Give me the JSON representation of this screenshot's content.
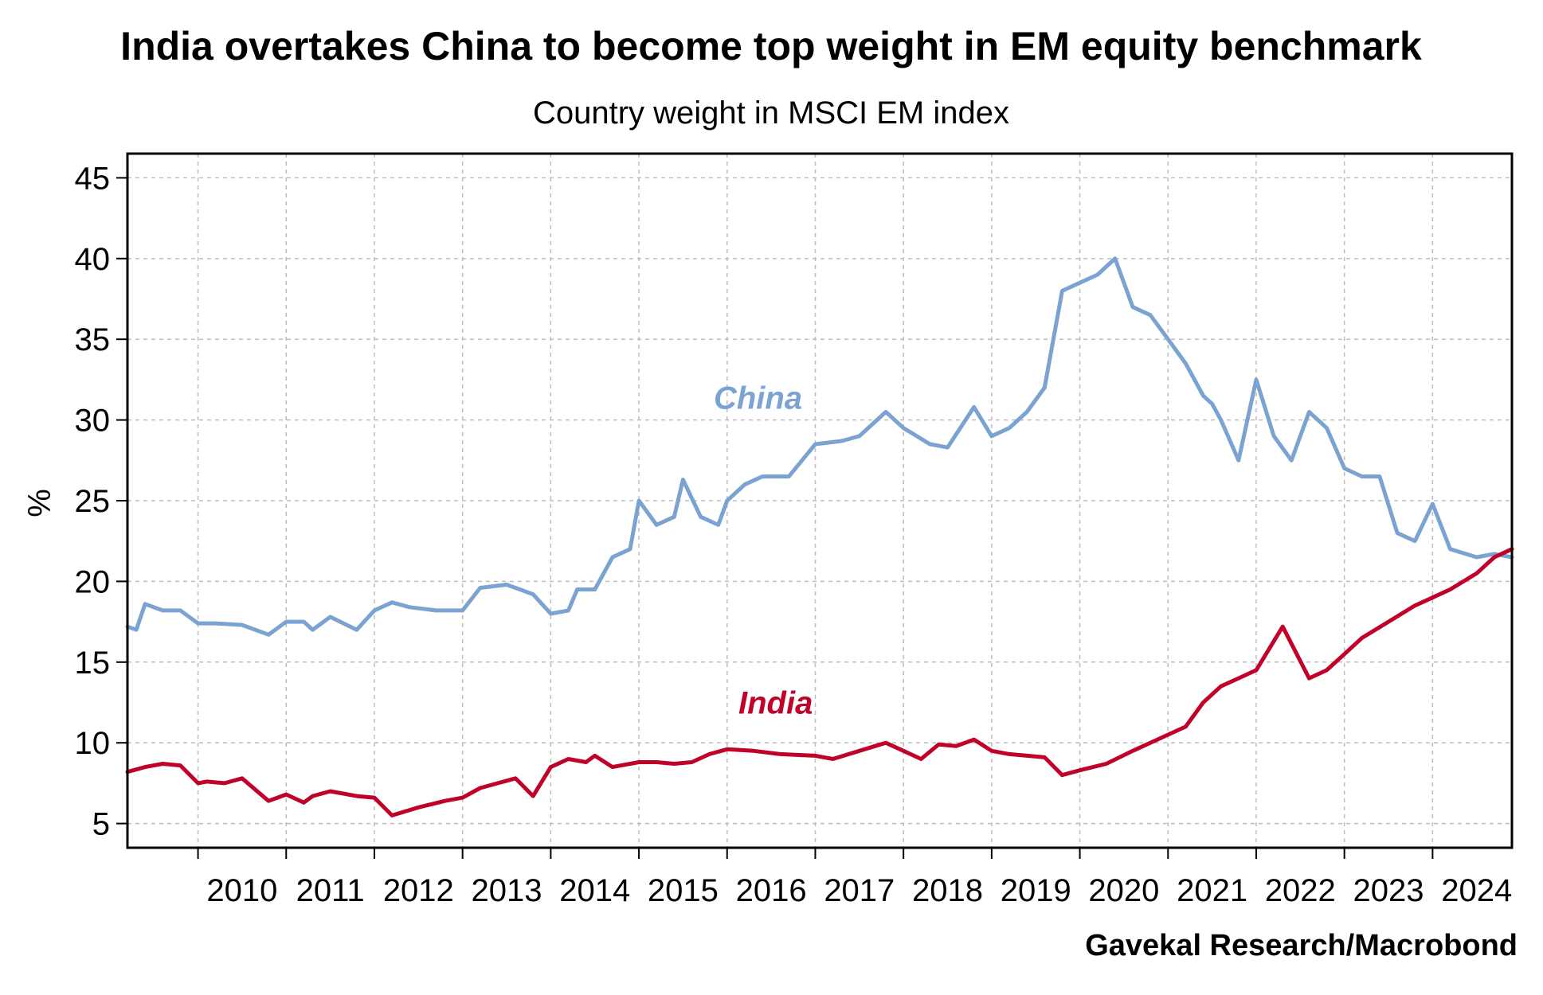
{
  "chart_data": {
    "type": "line",
    "title": "India overtakes China to become top weight in EM equity benchmark",
    "subtitle": "Country weight in MSCI EM index",
    "ylabel": "%",
    "xlabel": "",
    "ylim": [
      3.5,
      46.5
    ],
    "xlim": [
      2009.2,
      2024.9
    ],
    "yticks": [
      5,
      10,
      15,
      20,
      25,
      30,
      35,
      40,
      45
    ],
    "xticks": [
      2010,
      2011,
      2012,
      2013,
      2014,
      2015,
      2016,
      2017,
      2018,
      2019,
      2020,
      2021,
      2022,
      2023,
      2024
    ],
    "xtick_labels": [
      "2010",
      "2011",
      "2012",
      "2013",
      "2014",
      "2015",
      "2016",
      "2017",
      "2018",
      "2019",
      "2020",
      "2021",
      "2022",
      "2023",
      "2024"
    ],
    "grid": true,
    "source": "Gavekal Research/Macrobond",
    "series": [
      {
        "name": "China",
        "color": "#7ba3d1",
        "x": [
          2009.2,
          2009.3,
          2009.4,
          2009.6,
          2009.8,
          2010.0,
          2010.2,
          2010.5,
          2010.8,
          2011.0,
          2011.2,
          2011.3,
          2011.5,
          2011.8,
          2012.0,
          2012.2,
          2012.4,
          2012.7,
          2013.0,
          2013.2,
          2013.5,
          2013.6,
          2013.8,
          2014.0,
          2014.2,
          2014.3,
          2014.5,
          2014.7,
          2014.9,
          2015.0,
          2015.2,
          2015.4,
          2015.5,
          2015.7,
          2015.9,
          2016.0,
          2016.2,
          2016.4,
          2016.7,
          2017.0,
          2017.3,
          2017.5,
          2017.8,
          2018.0,
          2018.3,
          2018.5,
          2018.8,
          2019.0,
          2019.2,
          2019.4,
          2019.6,
          2019.8,
          2020.0,
          2020.2,
          2020.4,
          2020.6,
          2020.8,
          2021.0,
          2021.2,
          2021.4,
          2021.5,
          2021.6,
          2021.8,
          2022.0,
          2022.2,
          2022.4,
          2022.6,
          2022.8,
          2023.0,
          2023.2,
          2023.4,
          2023.6,
          2023.8,
          2024.0,
          2024.2,
          2024.5,
          2024.7,
          2024.9
        ],
        "values": [
          17.2,
          17.0,
          18.6,
          18.2,
          18.2,
          17.4,
          17.4,
          17.3,
          16.7,
          17.5,
          17.5,
          17.0,
          17.8,
          17.0,
          18.2,
          18.7,
          18.4,
          18.2,
          18.2,
          19.6,
          19.8,
          19.6,
          19.2,
          18.0,
          18.2,
          19.5,
          19.5,
          21.5,
          22.0,
          25.0,
          23.5,
          24.0,
          26.3,
          24.0,
          23.5,
          25.0,
          26.0,
          26.5,
          26.5,
          28.5,
          28.7,
          29.0,
          30.5,
          29.5,
          28.5,
          28.3,
          30.8,
          29.0,
          29.5,
          30.5,
          32.0,
          38.0,
          38.5,
          39.0,
          40.0,
          37.0,
          36.5,
          35.0,
          33.5,
          31.5,
          31.0,
          30.0,
          27.5,
          32.5,
          29.0,
          27.5,
          30.5,
          29.5,
          27.0,
          26.5,
          26.5,
          23.0,
          22.5,
          24.8,
          22.0,
          21.5,
          21.7,
          21.5
        ]
      },
      {
        "name": "India",
        "color": "#c0022b",
        "x": [
          2009.2,
          2009.4,
          2009.6,
          2009.8,
          2010.0,
          2010.1,
          2010.3,
          2010.5,
          2010.8,
          2011.0,
          2011.2,
          2011.3,
          2011.5,
          2011.8,
          2012.0,
          2012.2,
          2012.5,
          2012.8,
          2013.0,
          2013.2,
          2013.4,
          2013.6,
          2013.8,
          2014.0,
          2014.2,
          2014.4,
          2014.5,
          2014.7,
          2015.0,
          2015.2,
          2015.4,
          2015.6,
          2015.8,
          2016.0,
          2016.3,
          2016.6,
          2017.0,
          2017.2,
          2017.5,
          2017.8,
          2018.0,
          2018.2,
          2018.4,
          2018.6,
          2018.8,
          2019.0,
          2019.2,
          2019.4,
          2019.6,
          2019.8,
          2020.0,
          2020.3,
          2020.6,
          2021.0,
          2021.2,
          2021.4,
          2021.6,
          2021.8,
          2022.0,
          2022.3,
          2022.6,
          2022.8,
          2023.0,
          2023.2,
          2023.5,
          2023.8,
          2024.0,
          2024.2,
          2024.5,
          2024.7,
          2024.9
        ],
        "values": [
          8.2,
          8.5,
          8.7,
          8.6,
          7.5,
          7.6,
          7.5,
          7.8,
          6.4,
          6.8,
          6.3,
          6.7,
          7.0,
          6.7,
          6.6,
          5.5,
          6.0,
          6.4,
          6.6,
          7.2,
          7.5,
          7.8,
          6.7,
          8.5,
          9.0,
          8.8,
          9.2,
          8.5,
          8.8,
          8.8,
          8.7,
          8.8,
          9.3,
          9.6,
          9.5,
          9.3,
          9.2,
          9.0,
          9.5,
          10.0,
          9.5,
          9.0,
          9.9,
          9.8,
          10.2,
          9.5,
          9.3,
          9.2,
          9.1,
          8.0,
          8.3,
          8.7,
          9.5,
          10.5,
          11.0,
          12.5,
          13.5,
          14.0,
          14.5,
          17.2,
          14.0,
          14.5,
          15.5,
          16.5,
          17.5,
          18.5,
          19.0,
          19.5,
          20.5,
          21.5,
          22.0
        ]
      }
    ],
    "annotations": [
      {
        "text": "China",
        "x": 2016.35,
        "y": 30.7,
        "color": "#7ba3d1"
      },
      {
        "text": "India",
        "x": 2016.55,
        "y": 11.8,
        "color": "#c0022b"
      }
    ]
  }
}
